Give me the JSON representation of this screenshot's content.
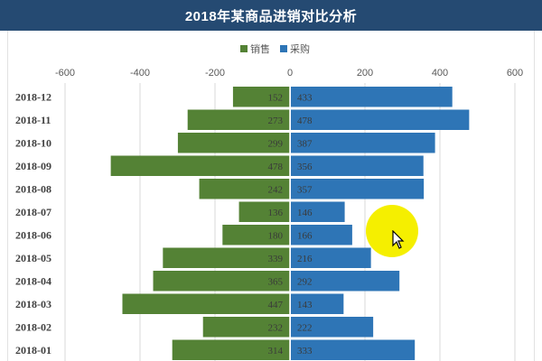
{
  "chart_data": {
    "type": "bar",
    "orientation": "horizontal",
    "title": "2018年某商品进销对比分析",
    "categories": [
      "2018-12",
      "2018-11",
      "2018-10",
      "2018-09",
      "2018-08",
      "2018-07",
      "2018-06",
      "2018-05",
      "2018-04",
      "2018-03",
      "2018-02",
      "2018-01"
    ],
    "series": [
      {
        "name": "销售",
        "color": "#548235",
        "values": [
          152,
          273,
          299,
          478,
          242,
          136,
          180,
          339,
          365,
          447,
          232,
          314
        ]
      },
      {
        "name": "采购",
        "color": "#2e75b6",
        "values": [
          433,
          478,
          387,
          356,
          357,
          146,
          166,
          216,
          292,
          143,
          222,
          333
        ]
      }
    ],
    "xlim": [
      -600,
      600
    ],
    "xticks": [
      -600,
      -400,
      -200,
      0,
      200,
      400,
      600
    ],
    "legend_position": "top",
    "grid": true
  }
}
